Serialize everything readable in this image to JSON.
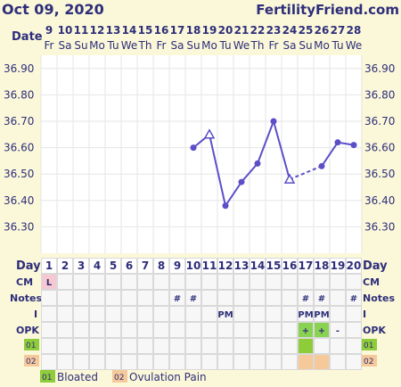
{
  "header": {
    "date": "Oct 09, 2020",
    "brand": "FertilityFriend.com"
  },
  "labels": {
    "date": "Date",
    "day": "Day",
    "cm": "CM",
    "notes": "Notes",
    "i": "I",
    "opk": "OPK",
    "code1": "01",
    "code2": "02"
  },
  "colors": {
    "line": "#5b4fc7",
    "page": "#fbf8d9",
    "grid_cell": "#f7f7f7",
    "cm_cell": "#f6c8d2",
    "opk_positive": "#8ad352",
    "code1": "#8fcc3a",
    "code2": "#f5c99a"
  },
  "chart_data": {
    "type": "line",
    "title": "",
    "ylim": [
      36.2,
      36.95
    ],
    "y_ticks": [
      "36.30",
      "36.40",
      "36.50",
      "36.60",
      "36.70",
      "36.80",
      "36.90"
    ],
    "dates": [
      "9",
      "10",
      "11",
      "12",
      "13",
      "14",
      "15",
      "16",
      "17",
      "18",
      "19",
      "20",
      "21",
      "22",
      "23",
      "24",
      "25",
      "26",
      "27",
      "28"
    ],
    "weekdays": [
      "Fr",
      "Sa",
      "Su",
      "Mo",
      "Tu",
      "We",
      "Th",
      "Fr",
      "Sa",
      "Su",
      "Mo",
      "Tu",
      "We",
      "Th",
      "Fr",
      "Sa",
      "Su",
      "Mo",
      "Tu",
      "We"
    ],
    "days": [
      "1",
      "2",
      "3",
      "4",
      "5",
      "6",
      "7",
      "8",
      "9",
      "10",
      "11",
      "12",
      "13",
      "14",
      "15",
      "16",
      "17",
      "18",
      "19",
      "20"
    ],
    "series": [
      {
        "values": [
          null,
          null,
          null,
          null,
          null,
          null,
          null,
          null,
          null,
          36.6,
          36.65,
          36.38,
          36.47,
          36.54,
          36.7,
          36.48,
          null,
          36.53,
          36.62,
          36.61
        ],
        "open_markers": [
          11,
          16
        ],
        "dashed_segments": [
          [
            16,
            18
          ]
        ]
      }
    ]
  },
  "rows": {
    "cm": [
      "L",
      "",
      "",
      "",
      "",
      "",
      "",
      "",
      "",
      "",
      "",
      "",
      "",
      "",
      "",
      "",
      "",
      "",
      "",
      ""
    ],
    "notes": [
      "",
      "",
      "",
      "",
      "",
      "",
      "",
      "",
      "#",
      "#",
      "",
      "",
      "",
      "",
      "",
      "",
      "#",
      "#",
      "",
      "#"
    ],
    "i": [
      "",
      "",
      "",
      "",
      "",
      "",
      "",
      "",
      "",
      "",
      "",
      "PM",
      "",
      "",
      "",
      "",
      "PM",
      "PM",
      "",
      ""
    ],
    "opk": [
      "",
      "",
      "",
      "",
      "",
      "",
      "",
      "",
      "",
      "",
      "",
      "",
      "",
      "",
      "",
      "",
      "+",
      "+",
      "-",
      ""
    ],
    "code1": [
      "",
      "",
      "",
      "",
      "",
      "",
      "",
      "",
      "",
      "",
      "",
      "",
      "",
      "",
      "",
      "",
      "x",
      "",
      "",
      ""
    ],
    "code2": [
      "",
      "",
      "",
      "",
      "",
      "",
      "",
      "",
      "",
      "",
      "",
      "",
      "",
      "",
      "",
      "",
      "x",
      "x",
      "",
      ""
    ]
  },
  "legend": [
    {
      "code": "01",
      "label": "Bloated"
    },
    {
      "code": "02",
      "label": "Ovulation Pain"
    }
  ]
}
